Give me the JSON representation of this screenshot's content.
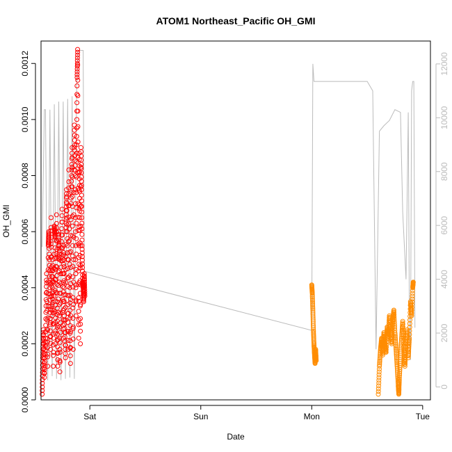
{
  "chart_data": {
    "type": "scatter",
    "title": "ATOM1 Northeast_Pacific OH_GMI",
    "xlabel": "Date",
    "ylabel": "OH_GMI",
    "x_ticks": [
      "Sat",
      "Sun",
      "Mon",
      "Tue"
    ],
    "x_tick_days": [
      1,
      2,
      3,
      4
    ],
    "xlim": [
      0.56,
      4.07
    ],
    "ylim": [
      0,
      0.00128
    ],
    "y_ticks": [
      0.0,
      0.0002,
      0.0004,
      0.0006,
      0.0008,
      0.001,
      0.0012
    ],
    "y_tick_labels": [
      "0.0000",
      "0.0002",
      "0.0004",
      "0.0006",
      "0.0008",
      "0.0010",
      "0.0012"
    ],
    "y2lim": [
      -480,
      12850
    ],
    "y2_ticks": [
      0,
      2000,
      4000,
      6000,
      8000,
      10000,
      12000
    ],
    "colors": {
      "series1": "#ff0000",
      "series2": "#ff8c00",
      "altitude": "#bbbbbb",
      "axis": "#000000"
    },
    "series": [
      {
        "color": "#ff0000",
        "segments": [
          [
            [
              0.57,
              2e-05
            ],
            [
              0.575,
              0.00015
            ],
            [
              0.58,
              0.00025
            ],
            [
              0.59,
              8e-05
            ],
            [
              0.6,
              0.00022
            ],
            [
              0.61,
              0.00045
            ],
            [
              0.62,
              0.00012
            ],
            [
              0.625,
              0.00055
            ],
            [
              0.63,
              0.0006
            ],
            [
              0.64,
              0.0004
            ],
            [
              0.645,
              0.00018
            ],
            [
              0.65,
              0.00065
            ],
            [
              0.66,
              0.0003
            ],
            [
              0.665,
              0.0005
            ],
            [
              0.67,
              0.00012
            ],
            [
              0.68,
              0.00062
            ],
            [
              0.685,
              0.00058
            ],
            [
              0.69,
              0.0002
            ],
            [
              0.7,
              0.00066
            ],
            [
              0.705,
              0.00035
            ],
            [
              0.71,
              0.00012
            ],
            [
              0.72,
              0.0006
            ],
            [
              0.725,
              0.0005
            ],
            [
              0.73,
              0.0001
            ],
            [
              0.74,
              0.00045
            ],
            [
              0.75,
              0.00068
            ],
            [
              0.76,
              0.00022
            ],
            [
              0.765,
              0.00055
            ],
            [
              0.77,
              0.0003
            ],
            [
              0.78,
              0.00015
            ],
            [
              0.785,
              0.0006
            ],
            [
              0.79,
              0.00075
            ],
            [
              0.8,
              0.0005
            ],
            [
              0.805,
              0.00018
            ],
            [
              0.81,
              0.00082
            ],
            [
              0.82,
              0.0004
            ],
            [
              0.825,
              0.00013
            ],
            [
              0.83,
              0.0007
            ],
            [
              0.84,
              0.0009
            ],
            [
              0.845,
              0.00055
            ],
            [
              0.85,
              0.00018
            ],
            [
              0.86,
              0.00098
            ],
            [
              0.87,
              0.0008
            ],
            [
              0.875,
              0.0003
            ],
            [
              0.88,
              0.00085
            ],
            [
              0.885,
              0.00115
            ],
            [
              0.89,
              0.00125
            ],
            [
              0.895,
              0.0007
            ],
            [
              0.9,
              0.00022
            ],
            [
              0.905,
              0.00088
            ],
            [
              0.91,
              0.00065
            ],
            [
              0.915,
              0.0002
            ],
            [
              0.92,
              0.0009
            ],
            [
              0.925,
              0.00075
            ],
            [
              0.93,
              0.00055
            ],
            [
              0.935,
              0.00042
            ],
            [
              0.94,
              0.0004
            ],
            [
              0.945,
              0.00035
            ],
            [
              0.95,
              0.00045
            ],
            [
              0.955,
              0.00037
            ]
          ]
        ]
      },
      {
        "color": "#ff8c00",
        "segments": [
          [
            [
              3.0,
              0.00041
            ],
            [
              3.005,
              0.00038
            ],
            [
              3.01,
              0.00032
            ],
            [
              3.015,
              0.00025
            ],
            [
              3.02,
              0.0002
            ],
            [
              3.025,
              0.00016
            ],
            [
              3.03,
              0.00013
            ],
            [
              3.035,
              0.00018
            ],
            [
              3.04,
              0.00014
            ]
          ],
          [
            [
              3.6,
              2e-05
            ],
            [
              3.61,
              0.00012
            ],
            [
              3.62,
              0.00018
            ],
            [
              3.63,
              0.00022
            ],
            [
              3.64,
              0.00016
            ],
            [
              3.65,
              0.00024
            ],
            [
              3.66,
              0.0002
            ],
            [
              3.67,
              0.00017
            ],
            [
              3.68,
              0.00026
            ],
            [
              3.69,
              0.00022
            ],
            [
              3.7,
              0.0003
            ],
            [
              3.71,
              0.00025
            ],
            [
              3.72,
              0.0002
            ],
            [
              3.73,
              0.00028
            ],
            [
              3.74,
              0.00032
            ],
            [
              3.75,
              0.00024
            ],
            [
              3.76,
              0.00018
            ],
            [
              3.77,
              0.00012
            ],
            [
              3.78,
              5e-05
            ],
            [
              3.785,
              2e-05
            ],
            [
              3.79,
              8e-05
            ],
            [
              3.8,
              0.00015
            ],
            [
              3.81,
              0.00022
            ],
            [
              3.82,
              0.00028
            ],
            [
              3.83,
              0.00018
            ],
            [
              3.84,
              0.00012
            ],
            [
              3.85,
              0.0002
            ],
            [
              3.86,
              0.00025
            ],
            [
              3.87,
              0.00015
            ],
            [
              3.88,
              0.00022
            ],
            [
              3.89,
              0.00035
            ],
            [
              3.9,
              0.0003
            ],
            [
              3.91,
              0.0004
            ],
            [
              3.915,
              0.00042
            ]
          ]
        ]
      }
    ],
    "altitude_trace": [
      [
        0.57,
        5200
      ],
      [
        0.59,
        10300
      ],
      [
        0.6,
        10300
      ],
      [
        0.62,
        250
      ],
      [
        0.64,
        10300
      ],
      [
        0.66,
        400
      ],
      [
        0.68,
        10500
      ],
      [
        0.7,
        300
      ],
      [
        0.72,
        10600
      ],
      [
        0.74,
        250
      ],
      [
        0.76,
        10600
      ],
      [
        0.78,
        300
      ],
      [
        0.8,
        10700
      ],
      [
        0.82,
        350
      ],
      [
        0.84,
        10800
      ],
      [
        0.86,
        300
      ],
      [
        0.88,
        11000
      ],
      [
        0.895,
        12500
      ],
      [
        0.94,
        12500
      ],
      [
        0.95,
        4300
      ],
      [
        3.0,
        2100
      ],
      [
        3.01,
        12000
      ],
      [
        3.02,
        11350
      ],
      [
        3.06,
        11350
      ],
      [
        3.3,
        11350
      ],
      [
        3.4,
        11350
      ],
      [
        3.45,
        11350
      ],
      [
        3.5,
        11350
      ],
      [
        3.55,
        11000
      ],
      [
        3.58,
        1400
      ],
      [
        3.61,
        9500
      ],
      [
        3.65,
        9700
      ],
      [
        3.7,
        9900
      ],
      [
        3.75,
        10300
      ],
      [
        3.8,
        10200
      ],
      [
        3.82,
        6500
      ],
      [
        3.85,
        4000
      ],
      [
        3.87,
        10200
      ],
      [
        3.88,
        2500
      ],
      [
        3.89,
        1000
      ],
      [
        3.9,
        11000
      ],
      [
        3.91,
        11350
      ],
      [
        3.92,
        11350
      ],
      [
        3.93,
        2200
      ]
    ]
  }
}
